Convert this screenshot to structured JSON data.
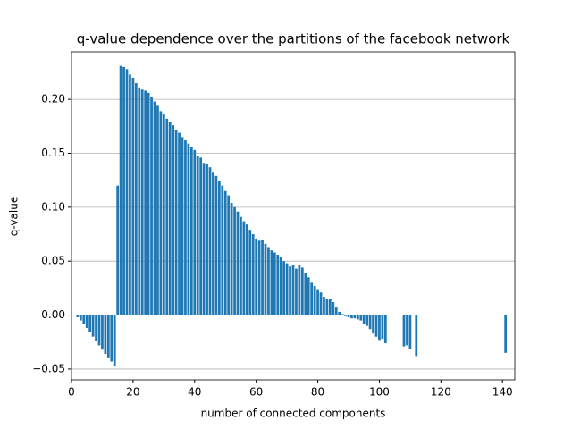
{
  "chart_data": {
    "type": "bar",
    "title": "q-value dependence over the partitions of the facebook network",
    "xlabel": "number of connected components",
    "ylabel": "q-value",
    "color": "#1f77b4",
    "grid": "y",
    "xlim": [
      0,
      144
    ],
    "ylim": [
      -0.06,
      0.244
    ],
    "xticks": [
      0,
      20,
      40,
      60,
      80,
      100,
      120,
      140
    ],
    "yticks": [
      {
        "value": -0.05,
        "label": "−0.05"
      },
      {
        "value": 0,
        "label": "0.00"
      },
      {
        "value": 0.05,
        "label": "0.05"
      },
      {
        "value": 0.1,
        "label": "0.10"
      },
      {
        "value": 0.15,
        "label": "0.15"
      },
      {
        "value": 0.2,
        "label": "0.20"
      }
    ],
    "x": [
      2,
      3,
      4,
      5,
      6,
      7,
      8,
      9,
      10,
      11,
      12,
      13,
      14,
      15,
      16,
      17,
      18,
      19,
      20,
      21,
      22,
      23,
      24,
      25,
      26,
      27,
      28,
      29,
      30,
      31,
      32,
      33,
      34,
      35,
      36,
      37,
      38,
      39,
      40,
      41,
      42,
      43,
      44,
      45,
      46,
      47,
      48,
      49,
      50,
      51,
      52,
      53,
      54,
      55,
      56,
      57,
      58,
      59,
      60,
      61,
      62,
      63,
      64,
      65,
      66,
      67,
      68,
      69,
      70,
      71,
      72,
      73,
      74,
      75,
      76,
      77,
      78,
      79,
      80,
      81,
      82,
      83,
      84,
      85,
      86,
      87,
      88,
      89,
      90,
      91,
      92,
      93,
      94,
      95,
      96,
      97,
      98,
      99,
      100,
      101,
      102,
      108,
      109,
      110,
      112,
      141
    ],
    "values": [
      -0.002,
      -0.005,
      -0.008,
      -0.012,
      -0.016,
      -0.02,
      -0.024,
      -0.028,
      -0.032,
      -0.036,
      -0.04,
      -0.043,
      -0.047,
      0.12,
      0.231,
      0.23,
      0.228,
      0.223,
      0.22,
      0.215,
      0.211,
      0.209,
      0.208,
      0.206,
      0.202,
      0.198,
      0.194,
      0.189,
      0.186,
      0.182,
      0.179,
      0.176,
      0.172,
      0.169,
      0.165,
      0.162,
      0.159,
      0.156,
      0.153,
      0.148,
      0.146,
      0.141,
      0.14,
      0.137,
      0.132,
      0.129,
      0.124,
      0.12,
      0.115,
      0.111,
      0.104,
      0.1,
      0.096,
      0.091,
      0.087,
      0.084,
      0.079,
      0.075,
      0.071,
      0.069,
      0.07,
      0.066,
      0.063,
      0.06,
      0.058,
      0.056,
      0.054,
      0.05,
      0.048,
      0.045,
      0.046,
      0.043,
      0.046,
      0.044,
      0.039,
      0.035,
      0.03,
      0.027,
      0.024,
      0.021,
      0.017,
      0.015,
      0.015,
      0.012,
      0.007,
      0.003,
      0.001,
      -0.001,
      -0.002,
      -0.003,
      -0.003,
      -0.004,
      -0.005,
      -0.008,
      -0.01,
      -0.013,
      -0.017,
      -0.02,
      -0.023,
      -0.022,
      -0.026,
      -0.029,
      -0.028,
      -0.031,
      -0.038,
      -0.035
    ]
  }
}
